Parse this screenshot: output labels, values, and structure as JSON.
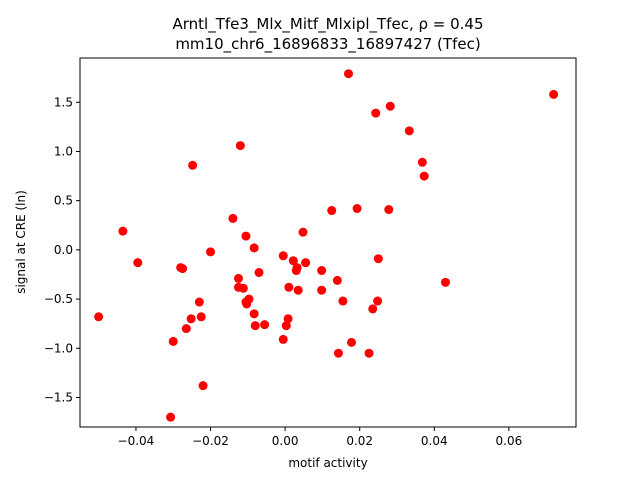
{
  "chart_data": {
    "type": "scatter",
    "title_line1": "Arntl_Tfe3_Mlx_Mitf_Mlxipl_Tfec, ρ = 0.45",
    "title_line2": "mm10_chr6_16896833_16897427 (Tfec)",
    "xlabel": "motif activity",
    "ylabel": "signal at CRE (ln)",
    "xlim": [
      -0.055,
      0.078
    ],
    "ylim": [
      -1.8,
      1.95
    ],
    "xticks": [
      -0.04,
      -0.02,
      0.0,
      0.02,
      0.04,
      0.06
    ],
    "xtick_labels": [
      "−0.04",
      "−0.02",
      "0.00",
      "0.02",
      "0.04",
      "0.06"
    ],
    "yticks": [
      -1.5,
      -1.0,
      -0.5,
      0.0,
      0.5,
      1.0,
      1.5
    ],
    "ytick_labels": [
      "−1.5",
      "−1.0",
      "−0.5",
      "0.0",
      "0.5",
      "1.0",
      "1.5"
    ],
    "grid": false,
    "marker_color": "#ff0000",
    "points": [
      {
        "x": -0.05,
        "y": -0.68
      },
      {
        "x": -0.0435,
        "y": 0.19
      },
      {
        "x": -0.0395,
        "y": -0.13
      },
      {
        "x": -0.03,
        "y": -0.93
      },
      {
        "x": -0.0307,
        "y": -1.7
      },
      {
        "x": -0.028,
        "y": -0.18
      },
      {
        "x": -0.0275,
        "y": -0.19
      },
      {
        "x": -0.0265,
        "y": -0.8
      },
      {
        "x": -0.0252,
        "y": -0.7
      },
      {
        "x": -0.0248,
        "y": 0.86
      },
      {
        "x": -0.023,
        "y": -0.53
      },
      {
        "x": -0.0225,
        "y": -0.68
      },
      {
        "x": -0.022,
        "y": -1.38
      },
      {
        "x": -0.02,
        "y": -0.02
      },
      {
        "x": -0.014,
        "y": 0.32
      },
      {
        "x": -0.0125,
        "y": -0.29
      },
      {
        "x": -0.0125,
        "y": -0.38
      },
      {
        "x": -0.012,
        "y": 1.06
      },
      {
        "x": -0.0112,
        "y": -0.39
      },
      {
        "x": -0.0105,
        "y": 0.14
      },
      {
        "x": -0.0105,
        "y": -0.53
      },
      {
        "x": -0.0103,
        "y": -0.55
      },
      {
        "x": -0.0097,
        "y": -0.5
      },
      {
        "x": -0.0083,
        "y": 0.02
      },
      {
        "x": -0.0083,
        "y": -0.65
      },
      {
        "x": -0.008,
        "y": -0.77
      },
      {
        "x": -0.007,
        "y": -0.23
      },
      {
        "x": -0.0055,
        "y": -0.76
      },
      {
        "x": -0.0005,
        "y": -0.06
      },
      {
        "x": -0.0005,
        "y": -0.91
      },
      {
        "x": 0.0003,
        "y": -0.77
      },
      {
        "x": 0.0008,
        "y": -0.7
      },
      {
        "x": 0.001,
        "y": -0.38
      },
      {
        "x": 0.0022,
        "y": -0.11
      },
      {
        "x": 0.003,
        "y": -0.21
      },
      {
        "x": 0.0032,
        "y": -0.18
      },
      {
        "x": 0.0035,
        "y": -0.41
      },
      {
        "x": 0.0048,
        "y": 0.18
      },
      {
        "x": 0.0055,
        "y": -0.13
      },
      {
        "x": 0.0098,
        "y": -0.21
      },
      {
        "x": 0.0098,
        "y": -0.41
      },
      {
        "x": 0.0125,
        "y": 0.4
      },
      {
        "x": 0.014,
        "y": -0.31
      },
      {
        "x": 0.0143,
        "y": -1.05
      },
      {
        "x": 0.0155,
        "y": -0.52
      },
      {
        "x": 0.017,
        "y": 1.79
      },
      {
        "x": 0.0178,
        "y": -0.94
      },
      {
        "x": 0.0193,
        "y": 0.42
      },
      {
        "x": 0.0225,
        "y": -1.05
      },
      {
        "x": 0.0235,
        "y": -0.6
      },
      {
        "x": 0.0243,
        "y": 1.39
      },
      {
        "x": 0.0248,
        "y": -0.52
      },
      {
        "x": 0.025,
        "y": -0.09
      },
      {
        "x": 0.0278,
        "y": 0.41
      },
      {
        "x": 0.0282,
        "y": 1.46
      },
      {
        "x": 0.0333,
        "y": 1.21
      },
      {
        "x": 0.0368,
        "y": 0.89
      },
      {
        "x": 0.0373,
        "y": 0.75
      },
      {
        "x": 0.043,
        "y": -0.33
      },
      {
        "x": 0.072,
        "y": 1.58
      }
    ]
  }
}
